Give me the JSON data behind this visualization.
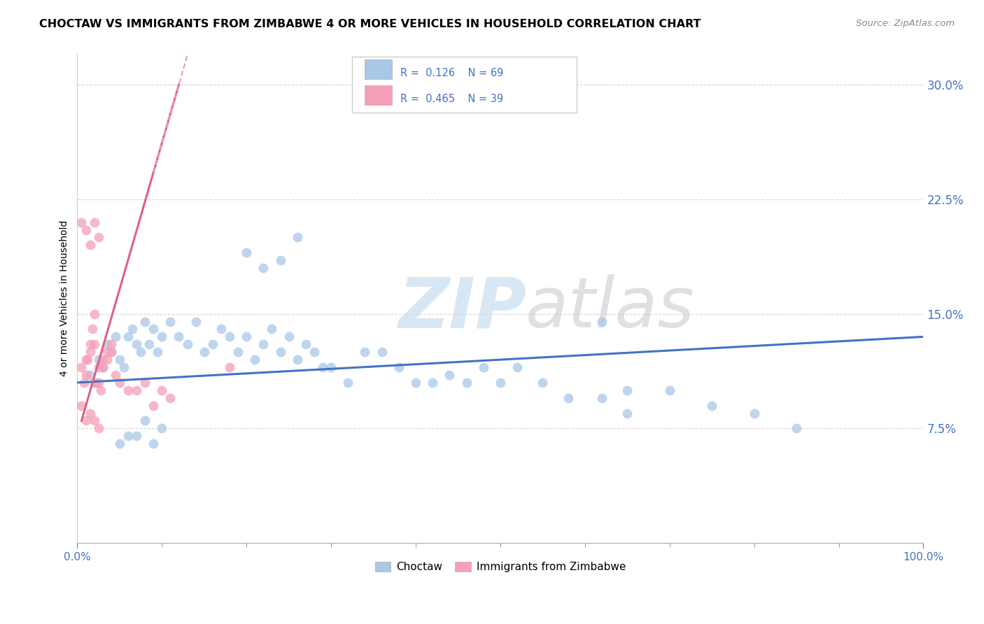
{
  "title": "CHOCTAW VS IMMIGRANTS FROM ZIMBABWE 4 OR MORE VEHICLES IN HOUSEHOLD CORRELATION CHART",
  "source": "Source: ZipAtlas.com",
  "ylabel": "4 or more Vehicles in Household",
  "ytick_values": [
    7.5,
    15.0,
    22.5,
    30.0
  ],
  "xlim": [
    0,
    100
  ],
  "ylim": [
    0,
    32
  ],
  "legend_labels": [
    "Choctaw",
    "Immigrants from Zimbabwe"
  ],
  "choctaw_color": "#a8c8e8",
  "zimbabwe_color": "#f4a0b8",
  "choctaw_line_color": "#4472c4",
  "zimbabwe_line_color": "#e06080",
  "R_choctaw": 0.126,
  "N_choctaw": 69,
  "R_zimbabwe": 0.465,
  "N_zimbabwe": 39,
  "dashed_line_color": "#e8a0b0",
  "grid_color": "#d8d8d8",
  "choctaw_x": [
    1.5,
    2.0,
    2.5,
    3.0,
    3.5,
    4.0,
    4.5,
    5.0,
    5.5,
    6.0,
    6.5,
    7.0,
    7.5,
    8.0,
    8.5,
    9.0,
    9.5,
    10.0,
    11.0,
    12.0,
    13.0,
    14.0,
    15.0,
    16.0,
    17.0,
    18.0,
    19.0,
    20.0,
    21.0,
    22.0,
    23.0,
    24.0,
    25.0,
    26.0,
    27.0,
    28.0,
    29.0,
    30.0,
    32.0,
    34.0,
    36.0,
    38.0,
    40.0,
    42.0,
    44.0,
    46.0,
    48.0,
    50.0,
    52.0,
    55.0,
    58.0,
    62.0,
    65.0,
    70.0,
    75.0,
    80.0,
    85.0,
    62.0,
    65.0,
    20.0,
    22.0,
    24.0,
    26.0,
    5.0,
    6.0,
    7.0,
    8.0,
    9.0,
    10.0
  ],
  "choctaw_y": [
    11.0,
    10.5,
    12.0,
    11.5,
    13.0,
    12.5,
    13.5,
    12.0,
    11.5,
    13.5,
    14.0,
    13.0,
    12.5,
    14.5,
    13.0,
    14.0,
    12.5,
    13.5,
    14.5,
    13.5,
    13.0,
    14.5,
    12.5,
    13.0,
    14.0,
    13.5,
    12.5,
    13.5,
    12.0,
    13.0,
    14.0,
    12.5,
    13.5,
    12.0,
    13.0,
    12.5,
    11.5,
    11.5,
    10.5,
    12.5,
    12.5,
    11.5,
    10.5,
    10.5,
    11.0,
    10.5,
    11.5,
    10.5,
    11.5,
    10.5,
    9.5,
    9.5,
    10.0,
    10.0,
    9.0,
    8.5,
    7.5,
    14.5,
    8.5,
    19.0,
    18.0,
    18.5,
    20.0,
    6.5,
    7.0,
    7.0,
    8.0,
    6.5,
    7.5
  ],
  "zimbabwe_x": [
    0.5,
    0.8,
    1.0,
    1.2,
    1.5,
    1.8,
    2.0,
    2.2,
    2.5,
    2.8,
    3.0,
    3.5,
    4.0,
    5.0,
    6.0,
    7.0,
    8.0,
    9.0,
    10.0,
    11.0,
    0.5,
    1.0,
    1.5,
    2.0,
    2.5,
    3.0,
    3.5,
    4.0,
    4.5,
    1.0,
    1.5,
    2.0,
    2.5,
    0.5,
    1.0,
    1.5,
    2.0,
    2.5,
    18.0
  ],
  "zimbabwe_y": [
    9.0,
    10.5,
    11.0,
    12.0,
    13.0,
    14.0,
    15.0,
    10.5,
    11.5,
    10.0,
    12.0,
    12.5,
    13.0,
    10.5,
    10.0,
    10.0,
    10.5,
    9.0,
    10.0,
    9.5,
    11.5,
    12.0,
    12.5,
    13.0,
    10.5,
    11.5,
    12.0,
    12.5,
    11.0,
    8.0,
    8.5,
    8.0,
    7.5,
    21.0,
    20.5,
    19.5,
    21.0,
    20.0,
    11.5
  ]
}
